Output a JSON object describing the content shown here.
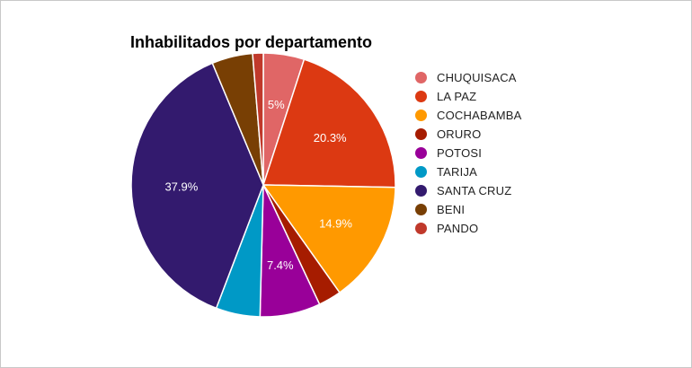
{
  "chart_data": {
    "type": "pie",
    "title": "Inhabilitados por departamento",
    "legend_position": "right",
    "slices": [
      {
        "name": "CHUQUISACA",
        "value": 5.0,
        "label": "5%",
        "color": "#e06666"
      },
      {
        "name": "LA PAZ",
        "value": 20.3,
        "label": "20.3%",
        "color": "#dc3912"
      },
      {
        "name": "COCHABAMBA",
        "value": 14.9,
        "label": "14.9%",
        "color": "#ff9900"
      },
      {
        "name": "ORURO",
        "value": 2.8,
        "label": "",
        "color": "#a61c00"
      },
      {
        "name": "POTOSI",
        "value": 7.4,
        "label": "7.4%",
        "color": "#990099"
      },
      {
        "name": "TARIJA",
        "value": 5.4,
        "label": "",
        "color": "#0099c6"
      },
      {
        "name": "SANTA CRUZ",
        "value": 37.9,
        "label": "37.9%",
        "color": "#331a6e"
      },
      {
        "name": "BENI",
        "value": 5.0,
        "label": "",
        "color": "#783f04"
      },
      {
        "name": "PANDO",
        "value": 1.3,
        "label": "",
        "color": "#c0392b"
      }
    ]
  }
}
